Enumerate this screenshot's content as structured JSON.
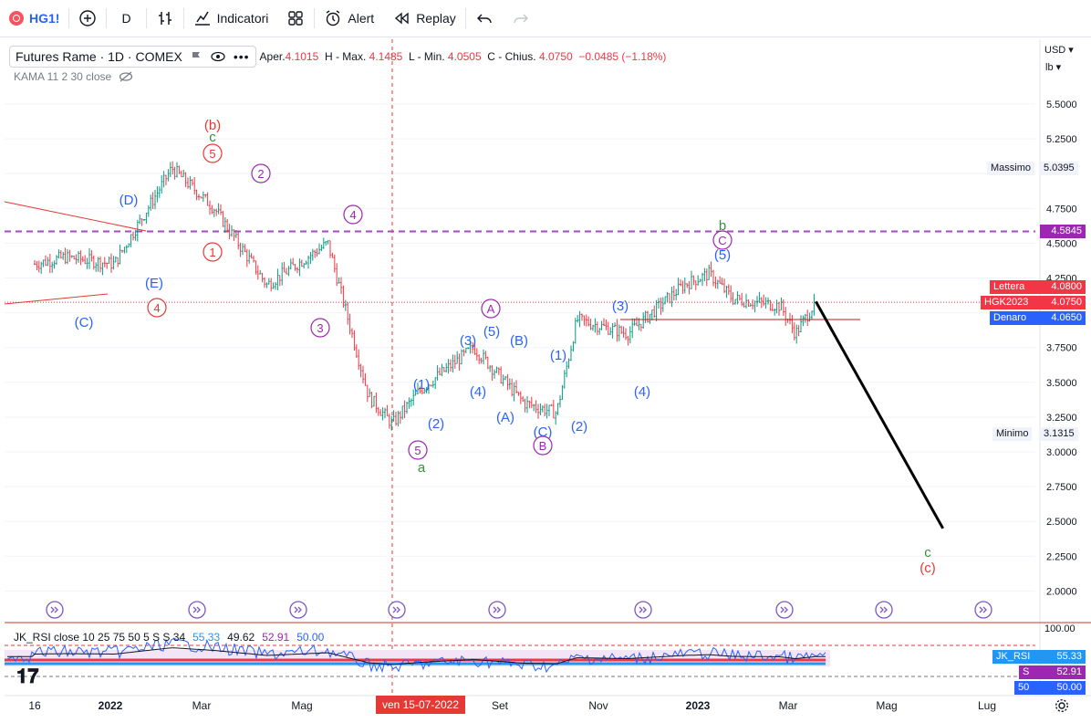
{
  "toolbar": {
    "symbol": "HG1!",
    "interval": "D",
    "indicators_label": "Indicatori",
    "alert_label": "Alert",
    "replay_label": "Replay"
  },
  "legend": {
    "title": "Futures Rame · 1D · COMEX",
    "open_label": "Aper.",
    "open": "4.1015",
    "high_label": "H - Max.",
    "high": "4.1485",
    "low_label": "L - Min.",
    "low": "4.0505",
    "close_label": "C - Chius.",
    "close": "4.0750",
    "change": "−0.0485 (−1.18%)",
    "kama": "KAMA 11 2 30 close"
  },
  "price_axis": {
    "currency": "USD",
    "unit": "lb",
    "ticks": [
      "5.5000",
      "5.2500",
      "4.7500",
      "4.5000",
      "4.2500",
      "3.7500",
      "3.5000",
      "3.2500",
      "3.0000",
      "2.7500",
      "2.5000",
      "2.2500",
      "2.0000"
    ]
  },
  "price_labels": {
    "massimo_label": "Massimo",
    "massimo": "5.0395",
    "minimo_label": "Minimo",
    "minimo": "3.1315",
    "dashed_level": "4.5845",
    "lettera_label": "Lettera",
    "lettera": "4.0800",
    "hgk_label": "HGK2023",
    "hgk": "4.0750",
    "denaro_label": "Denaro",
    "denaro": "4.0650"
  },
  "time_axis": {
    "labels": [
      "16",
      "2022",
      "Mar",
      "Mag",
      "Set",
      "Nov",
      "2023",
      "Mar",
      "Mag",
      "Lug"
    ],
    "crosshair": "ven 15-07-2022"
  },
  "rsi": {
    "title": "JK_RSI close 10 25 75 50 5 S S 34",
    "v1": "55.33",
    "v2": "49.62",
    "v3": "52.91",
    "v4": "50.00",
    "axis_top": "100.00",
    "box_name": "JK_RSI",
    "box_val": "55.33",
    "s_name": "S",
    "s_val": "52.91",
    "fifty_name": "50",
    "fifty_val": "50.00"
  },
  "colors": {
    "up": "#089981",
    "down": "#f23645",
    "blue_wave": "#2962ff",
    "purple_wave": "#9c27b0",
    "red_wave": "#e53935",
    "green_wave": "#388e3c",
    "dashed": "#a64ac9"
  },
  "chart_data": {
    "type": "line",
    "xlabel": "",
    "ylabel": "",
    "ylim": [
      1.85,
      5.75
    ],
    "x": [
      "2021-12-16",
      "2022-01-03",
      "2022-02-01",
      "2022-03-07",
      "2022-04-01",
      "2022-05-02",
      "2022-06-07",
      "2022-07-01",
      "2022-07-15",
      "2022-08-01",
      "2022-09-01",
      "2022-10-01",
      "2022-10-20",
      "2022-11-01",
      "2022-12-01",
      "2023-01-03",
      "2023-01-18",
      "2023-02-01",
      "2023-03-01",
      "2023-03-10",
      "2023-03-22"
    ],
    "series": [
      {
        "values": [
          4.35,
          4.4,
          4.35,
          5.04,
          4.75,
          4.2,
          4.5,
          3.4,
          3.2,
          3.45,
          3.75,
          3.35,
          3.28,
          3.95,
          3.85,
          4.2,
          4.28,
          4.1,
          4.05,
          3.85,
          4.08
        ]
      }
    ],
    "projection": {
      "from": [
        "2023-03-22",
        4.08
      ],
      "to": [
        "2023-06-05",
        2.45
      ]
    },
    "levels": {
      "dashed": 4.5845,
      "massimo": 5.0395,
      "minimo": 3.1315,
      "last": 4.075
    },
    "wave_labels": [
      {
        "text": "(b)",
        "color": "red"
      },
      {
        "text": "c",
        "color": "green"
      },
      {
        "text": "5",
        "color": "red",
        "circled": true
      },
      {
        "text": "2",
        "color": "purple",
        "circled": true
      },
      {
        "text": "(D)",
        "color": "blue"
      },
      {
        "text": "1",
        "color": "red",
        "circled": true
      },
      {
        "text": "(E)",
        "color": "blue"
      },
      {
        "text": "4",
        "color": "red",
        "circled": true
      },
      {
        "text": "(C)",
        "color": "blue"
      },
      {
        "text": "4",
        "color": "purple",
        "circled": true
      },
      {
        "text": "3",
        "color": "purple",
        "circled": true
      },
      {
        "text": "(1)",
        "color": "blue"
      },
      {
        "text": "(2)",
        "color": "blue"
      },
      {
        "text": "5",
        "color": "purple",
        "circled": true
      },
      {
        "text": "a",
        "color": "green"
      },
      {
        "text": "(3)",
        "color": "blue"
      },
      {
        "text": "(4)",
        "color": "blue"
      },
      {
        "text": "A",
        "color": "purple",
        "circled": true
      },
      {
        "text": "(5)",
        "color": "blue"
      },
      {
        "text": "(B)",
        "color": "blue"
      },
      {
        "text": "(A)",
        "color": "blue"
      },
      {
        "text": "(C)",
        "color": "blue"
      },
      {
        "text": "B",
        "color": "purple",
        "circled": true
      },
      {
        "text": "(1)",
        "color": "blue"
      },
      {
        "text": "(2)",
        "color": "blue"
      },
      {
        "text": "(3)",
        "color": "blue"
      },
      {
        "text": "(4)",
        "color": "blue"
      },
      {
        "text": "b",
        "color": "green"
      },
      {
        "text": "C",
        "color": "purple",
        "circled": true
      },
      {
        "text": "(5)",
        "color": "blue"
      },
      {
        "text": "c",
        "color": "green"
      },
      {
        "text": "(c)",
        "color": "red"
      }
    ]
  }
}
